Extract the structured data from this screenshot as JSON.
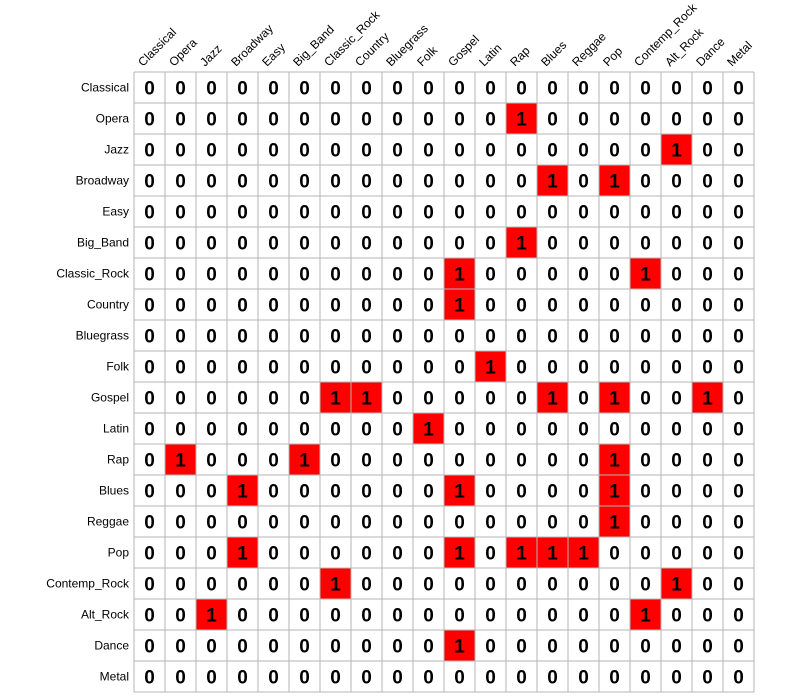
{
  "chart_data": {
    "type": "heatmap",
    "title": "",
    "xlabel": "",
    "ylabel": "",
    "columns": [
      "Classical",
      "Opera",
      "Jazz",
      "Broadway",
      "Easy",
      "Big_Band",
      "Classic_Rock",
      "Country",
      "Bluegrass",
      "Folk",
      "Gospel",
      "Latin",
      "Rap",
      "Blues",
      "Reggae",
      "Pop",
      "Contemp_Rock",
      "Alt_Rock",
      "Dance",
      "Metal"
    ],
    "rows": [
      "Classical",
      "Opera",
      "Jazz",
      "Broadway",
      "Easy",
      "Big_Band",
      "Classic_Rock",
      "Country",
      "Bluegrass",
      "Folk",
      "Gospel",
      "Latin",
      "Rap",
      "Blues",
      "Reggae",
      "Pop",
      "Contemp_Rock",
      "Alt_Rock",
      "Dance",
      "Metal"
    ],
    "values": [
      [
        0,
        0,
        0,
        0,
        0,
        0,
        0,
        0,
        0,
        0,
        0,
        0,
        0,
        0,
        0,
        0,
        0,
        0,
        0,
        0
      ],
      [
        0,
        0,
        0,
        0,
        0,
        0,
        0,
        0,
        0,
        0,
        0,
        0,
        1,
        0,
        0,
        0,
        0,
        0,
        0,
        0
      ],
      [
        0,
        0,
        0,
        0,
        0,
        0,
        0,
        0,
        0,
        0,
        0,
        0,
        0,
        0,
        0,
        0,
        0,
        1,
        0,
        0
      ],
      [
        0,
        0,
        0,
        0,
        0,
        0,
        0,
        0,
        0,
        0,
        0,
        0,
        0,
        1,
        0,
        1,
        0,
        0,
        0,
        0
      ],
      [
        0,
        0,
        0,
        0,
        0,
        0,
        0,
        0,
        0,
        0,
        0,
        0,
        0,
        0,
        0,
        0,
        0,
        0,
        0,
        0
      ],
      [
        0,
        0,
        0,
        0,
        0,
        0,
        0,
        0,
        0,
        0,
        0,
        0,
        1,
        0,
        0,
        0,
        0,
        0,
        0,
        0
      ],
      [
        0,
        0,
        0,
        0,
        0,
        0,
        0,
        0,
        0,
        0,
        1,
        0,
        0,
        0,
        0,
        0,
        1,
        0,
        0,
        0
      ],
      [
        0,
        0,
        0,
        0,
        0,
        0,
        0,
        0,
        0,
        0,
        1,
        0,
        0,
        0,
        0,
        0,
        0,
        0,
        0,
        0
      ],
      [
        0,
        0,
        0,
        0,
        0,
        0,
        0,
        0,
        0,
        0,
        0,
        0,
        0,
        0,
        0,
        0,
        0,
        0,
        0,
        0
      ],
      [
        0,
        0,
        0,
        0,
        0,
        0,
        0,
        0,
        0,
        0,
        0,
        1,
        0,
        0,
        0,
        0,
        0,
        0,
        0,
        0
      ],
      [
        0,
        0,
        0,
        0,
        0,
        0,
        1,
        1,
        0,
        0,
        0,
        0,
        0,
        1,
        0,
        1,
        0,
        0,
        1,
        0
      ],
      [
        0,
        0,
        0,
        0,
        0,
        0,
        0,
        0,
        0,
        1,
        0,
        0,
        0,
        0,
        0,
        0,
        0,
        0,
        0,
        0
      ],
      [
        0,
        1,
        0,
        0,
        0,
        1,
        0,
        0,
        0,
        0,
        0,
        0,
        0,
        0,
        0,
        1,
        0,
        0,
        0,
        0
      ],
      [
        0,
        0,
        0,
        1,
        0,
        0,
        0,
        0,
        0,
        0,
        1,
        0,
        0,
        0,
        0,
        1,
        0,
        0,
        0,
        0
      ],
      [
        0,
        0,
        0,
        0,
        0,
        0,
        0,
        0,
        0,
        0,
        0,
        0,
        0,
        0,
        0,
        1,
        0,
        0,
        0,
        0
      ],
      [
        0,
        0,
        0,
        1,
        0,
        0,
        0,
        0,
        0,
        0,
        1,
        0,
        1,
        1,
        1,
        0,
        0,
        0,
        0,
        0
      ],
      [
        0,
        0,
        0,
        0,
        0,
        0,
        1,
        0,
        0,
        0,
        0,
        0,
        0,
        0,
        0,
        0,
        0,
        1,
        0,
        0
      ],
      [
        0,
        0,
        1,
        0,
        0,
        0,
        0,
        0,
        0,
        0,
        0,
        0,
        0,
        0,
        0,
        0,
        1,
        0,
        0,
        0
      ],
      [
        0,
        0,
        0,
        0,
        0,
        0,
        0,
        0,
        0,
        0,
        1,
        0,
        0,
        0,
        0,
        0,
        0,
        0,
        0,
        0
      ],
      [
        0,
        0,
        0,
        0,
        0,
        0,
        0,
        0,
        0,
        0,
        0,
        0,
        0,
        0,
        0,
        0,
        0,
        0,
        0,
        0
      ]
    ],
    "colors": {
      "one": "#ff0000",
      "zero": "#ffffff",
      "grid": "#b4b4b4",
      "text": "#000000"
    },
    "grid": true,
    "legend": "none"
  }
}
